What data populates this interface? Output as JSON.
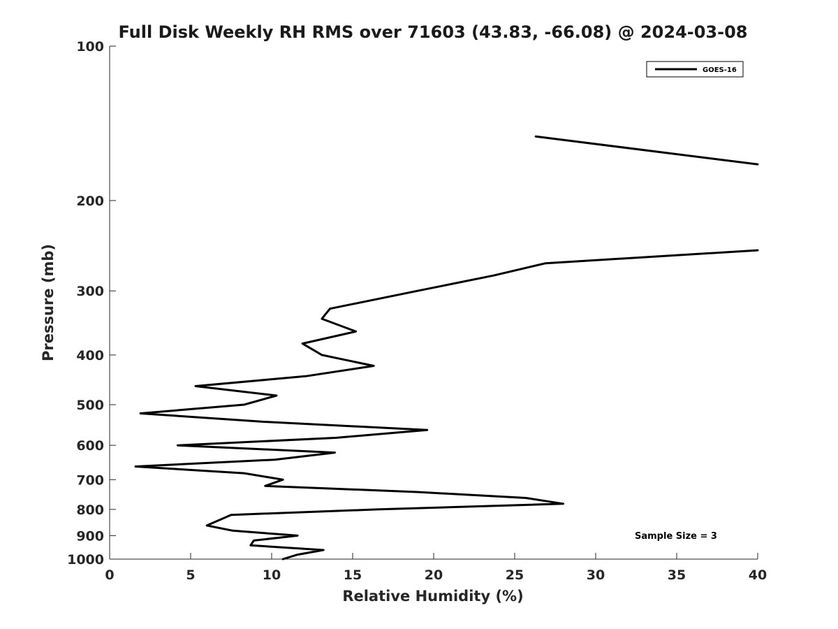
{
  "chart_data": {
    "type": "line",
    "title": "Full Disk Weekly RH RMS over 71603 (43.83, -66.08) @ 2024-03-08",
    "xlabel": "Relative Humidity (%)",
    "ylabel": "Pressure (mb)",
    "xlim": [
      0,
      40
    ],
    "ylim": [
      100,
      1000
    ],
    "yscale": "log",
    "y_inverted": true,
    "x_ticks": [
      0,
      5,
      10,
      15,
      20,
      25,
      30,
      35,
      40
    ],
    "y_ticks": [
      100,
      200,
      300,
      400,
      500,
      600,
      700,
      800,
      900,
      1000
    ],
    "grid": false,
    "legend": "top-right",
    "annotation": "Sample Size = 3",
    "series": [
      {
        "name": "GOES-16",
        "color": "#000000",
        "segments": [
          [
            [
              26.3,
              150
            ],
            [
              40.0,
              170
            ]
          ],
          [
            [
              40.0,
              250
            ],
            [
              26.9,
              265
            ],
            [
              23.7,
              280
            ],
            [
              19.0,
              300
            ],
            [
              13.6,
              325
            ],
            [
              13.1,
              340
            ],
            [
              15.2,
              360
            ],
            [
              11.9,
              380
            ],
            [
              13.1,
              400
            ],
            [
              16.3,
              420
            ],
            [
              12.1,
              440
            ],
            [
              5.3,
              460
            ],
            [
              10.3,
              480
            ],
            [
              8.3,
              500
            ],
            [
              1.9,
              520
            ],
            [
              9.6,
              540
            ],
            [
              19.6,
              560
            ],
            [
              14.0,
              580
            ],
            [
              4.2,
              600
            ],
            [
              13.9,
              620
            ],
            [
              10.2,
              640
            ],
            [
              1.6,
              660
            ],
            [
              8.3,
              680
            ],
            [
              10.7,
              700
            ],
            [
              9.6,
              720
            ],
            [
              19.0,
              740
            ],
            [
              25.7,
              760
            ],
            [
              28.0,
              780
            ],
            [
              16.5,
              800
            ],
            [
              7.5,
              820
            ],
            [
              6.0,
              860
            ],
            [
              7.6,
              880
            ],
            [
              11.6,
              900
            ],
            [
              8.9,
              920
            ],
            [
              8.7,
              940
            ],
            [
              13.2,
              960
            ],
            [
              11.6,
              980
            ],
            [
              10.7,
              1000
            ]
          ]
        ]
      }
    ]
  }
}
